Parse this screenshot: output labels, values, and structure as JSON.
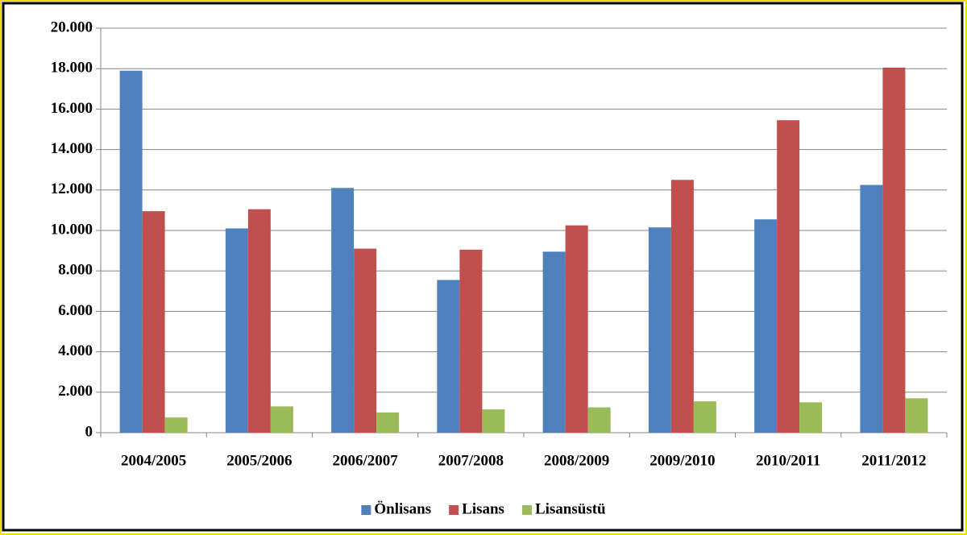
{
  "chart_data": {
    "type": "bar",
    "categories": [
      "2004/2005",
      "2005/2006",
      "2006/2007",
      "2007/2008",
      "2008/2009",
      "2009/2010",
      "2010/2011",
      "2011/2012"
    ],
    "series": [
      {
        "name": "Önlisans",
        "color": "#4f81bd",
        "values": [
          17900,
          10100,
          12100,
          7550,
          8950,
          10150,
          10550,
          12250
        ]
      },
      {
        "name": "Lisans",
        "color": "#c0504d",
        "values": [
          10950,
          11050,
          9100,
          9050,
          10250,
          12500,
          15450,
          18050
        ]
      },
      {
        "name": "Lisansüstü",
        "color": "#9bbb59",
        "values": [
          750,
          1300,
          1000,
          1150,
          1250,
          1550,
          1500,
          1700
        ]
      }
    ],
    "ylim": [
      0,
      20000
    ],
    "yticks": [
      0,
      {
        "value": 2000,
        "label": "2.000"
      },
      {
        "value": 4000,
        "label": "4.000"
      },
      {
        "value": 6000,
        "label": "6.000"
      },
      {
        "value": 8000,
        "label": "8.000"
      },
      {
        "value": 10000,
        "label": "10.000"
      },
      {
        "value": 12000,
        "label": "12.000"
      },
      {
        "value": 14000,
        "label": "14.000"
      },
      {
        "value": 16000,
        "label": "16.000"
      },
      {
        "value": 18000,
        "label": "18.000"
      },
      {
        "value": 20000,
        "label": "20.000"
      }
    ],
    "grid": true,
    "legend": "bottom"
  }
}
